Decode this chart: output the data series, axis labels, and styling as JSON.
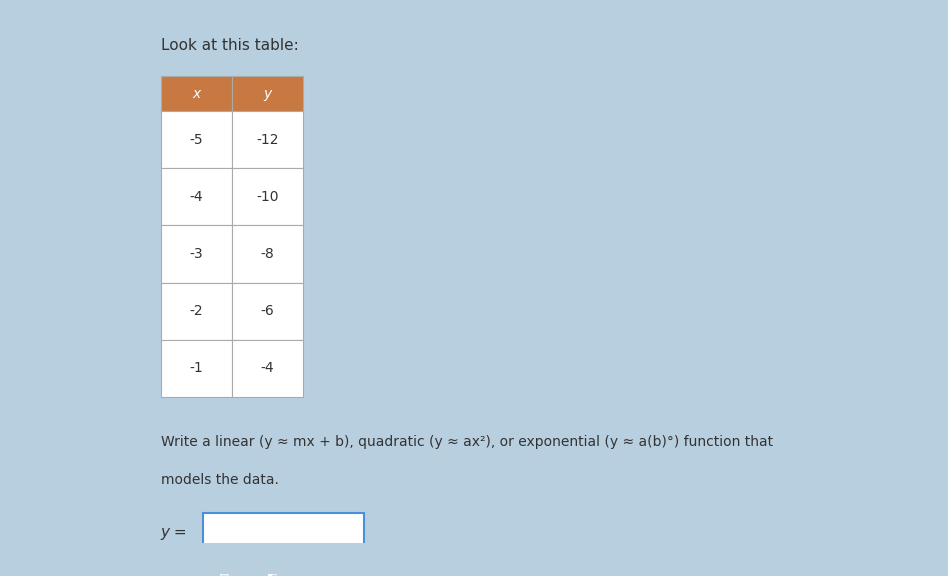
{
  "title": "Look at this table:",
  "table_headers": [
    "x",
    "y"
  ],
  "table_data": [
    [
      "-5",
      "-12"
    ],
    [
      "-4",
      "-10"
    ],
    [
      "-3",
      "-8"
    ],
    [
      "-2",
      "-6"
    ],
    [
      "-1",
      "-4"
    ]
  ],
  "header_bg_color": "#C87941",
  "header_text_color": "#ffffff",
  "cell_bg_color": "#ffffff",
  "cell_text_color": "#333333",
  "table_border_color": "#aaaaaa",
  "bg_color": "#b8cfe0",
  "body_text": "Write a linear (y ≈ mx + b), quadratic (y ≈ ax²), or exponential (y ≈ a(b)°) function that\nmodels the data.",
  "answer_label": "y =",
  "input_box_color": "#ffffff",
  "input_box_border": "#4a90d9",
  "button_color": "#3a7abf",
  "title_fontsize": 11,
  "body_fontsize": 10,
  "table_fontsize": 10
}
